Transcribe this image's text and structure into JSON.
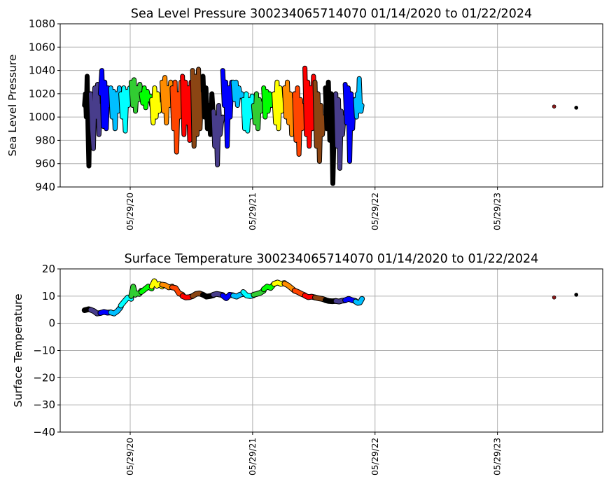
{
  "chart_data": [
    {
      "type": "scatter",
      "title": "Sea Level Pressure 300234065714070  01/14/2020 to 01/22/2024",
      "ylabel": "Sea Level Pressure",
      "xlabel": "",
      "ylim": [
        940,
        1080
      ],
      "yticks": [
        "940",
        "960",
        "980",
        "1000",
        "1020",
        "1040",
        "1060",
        "1080"
      ],
      "xticks": [
        {
          "date": "2020-05-29",
          "label": "05/29/20"
        },
        {
          "date": "2021-05-29",
          "label": "05/29/21"
        },
        {
          "date": "2022-05-29",
          "label": "05/29/22"
        },
        {
          "date": "2023-05-29",
          "label": "05/29/23"
        }
      ],
      "xlim": [
        "2019-11-06",
        "2024-03-12"
      ],
      "grid": true,
      "segments": [
        {
          "start": "2020-01-14",
          "end": "2020-02-01",
          "color": "#000000",
          "values": [
            1010,
            1020,
            1000,
            1035,
            990,
            958,
            1015,
            1005
          ]
        },
        {
          "start": "2020-02-01",
          "end": "2020-03-01",
          "color": "#483d8b",
          "values": [
            1020,
            990,
            973,
            1025,
            1000,
            1028,
            985,
            1010
          ]
        },
        {
          "start": "2020-03-01",
          "end": "2020-04-01",
          "color": "#0000ff",
          "values": [
            1020,
            1040,
            992,
            1030,
            990,
            1025,
            1010,
            1015
          ]
        },
        {
          "start": "2020-04-01",
          "end": "2020-05-01",
          "color": "#00bfff",
          "values": [
            1025,
            1000,
            1022,
            990,
            1020,
            1005,
            1025,
            1010
          ]
        },
        {
          "start": "2020-05-01",
          "end": "2020-06-01",
          "color": "#00ffff",
          "values": [
            1020,
            1000,
            1025,
            988,
            1022,
            1010,
            1025,
            1015
          ]
        },
        {
          "start": "2020-06-01",
          "end": "2020-07-01",
          "color": "#32cd32",
          "values": [
            1030,
            1010,
            1032,
            1005,
            1025,
            1015,
            1028,
            1020
          ]
        },
        {
          "start": "2020-07-01",
          "end": "2020-08-01",
          "color": "#00ff00",
          "values": [
            1020,
            1012,
            1025,
            1008,
            1022,
            1015,
            1018,
            1010
          ]
        },
        {
          "start": "2020-08-01",
          "end": "2020-09-01",
          "color": "#ffff00",
          "values": [
            1015,
            995,
            1025,
            1000,
            1020,
            1005,
            1010,
            1012
          ]
        },
        {
          "start": "2020-09-01",
          "end": "2020-10-01",
          "color": "#ff8c00",
          "values": [
            1030,
            1005,
            1034,
            995,
            1025,
            1010,
            1030,
            1015
          ]
        },
        {
          "start": "2020-10-01",
          "end": "2020-11-01",
          "color": "#ff4500",
          "values": [
            1025,
            990,
            1030,
            970,
            1020,
            1000,
            1030,
            1010
          ]
        },
        {
          "start": "2020-11-01",
          "end": "2020-12-01",
          "color": "#ff0000",
          "values": [
            1035,
            985,
            1030,
            995,
            1025,
            980,
            1030,
            1010
          ]
        },
        {
          "start": "2020-12-01",
          "end": "2021-01-01",
          "color": "#8b4513",
          "values": [
            1040,
            975,
            1035,
            985,
            1041,
            990,
            1020,
            1005
          ]
        },
        {
          "start": "2021-01-01",
          "end": "2021-02-01",
          "color": "#000000",
          "values": [
            1035,
            1000,
            1025,
            990,
            1010,
            985,
            1020,
            1000
          ]
        },
        {
          "start": "2021-02-01",
          "end": "2021-03-01",
          "color": "#483d8b",
          "values": [
            1005,
            975,
            1000,
            959,
            1010,
            985,
            995,
            1000
          ]
        },
        {
          "start": "2021-03-01",
          "end": "2021-04-01",
          "color": "#0000ff",
          "values": [
            1040,
            1010,
            1030,
            975,
            1025,
            1000,
            1030,
            1020
          ]
        },
        {
          "start": "2021-04-01",
          "end": "2021-05-01",
          "color": "#00bfff",
          "values": [
            1030,
            1015,
            1030,
            1010,
            1025,
            1018,
            1020,
            1015
          ]
        },
        {
          "start": "2021-05-01",
          "end": "2021-06-01",
          "color": "#00ffff",
          "values": [
            1015,
            990,
            1020,
            988,
            1015,
            1000,
            1018,
            1010
          ]
        },
        {
          "start": "2021-06-01",
          "end": "2021-07-01",
          "color": "#32cd32",
          "values": [
            1010,
            995,
            1020,
            990,
            1015,
            1005,
            1012,
            1010
          ]
        },
        {
          "start": "2021-07-01",
          "end": "2021-08-01",
          "color": "#00ff00",
          "values": [
            1025,
            1000,
            1022,
            1005,
            1020,
            1010,
            1015,
            1012
          ]
        },
        {
          "start": "2021-08-01",
          "end": "2021-09-01",
          "color": "#ffff00",
          "values": [
            1020,
            995,
            1030,
            990,
            1025,
            1005,
            1015,
            1012
          ]
        },
        {
          "start": "2021-09-01",
          "end": "2021-10-01",
          "color": "#ff8c00",
          "values": [
            1025,
            1000,
            1030,
            995,
            1020,
            985,
            1015,
            1005
          ]
        },
        {
          "start": "2021-10-01",
          "end": "2021-11-01",
          "color": "#ff4500",
          "values": [
            1020,
            980,
            1025,
            968,
            1015,
            990,
            1010,
            1000
          ]
        },
        {
          "start": "2021-11-01",
          "end": "2021-12-01",
          "color": "#ff0000",
          "values": [
            1042,
            985,
            1030,
            975,
            1025,
            990,
            1035,
            1000
          ]
        },
        {
          "start": "2021-12-01",
          "end": "2022-01-01",
          "color": "#8b4513",
          "values": [
            1030,
            975,
            1020,
            962,
            1010,
            985,
            1000,
            995
          ]
        },
        {
          "start": "2022-01-01",
          "end": "2022-02-01",
          "color": "#000000",
          "values": [
            1025,
            990,
            1030,
            980,
            1020,
            943,
            1000,
            1010
          ]
        },
        {
          "start": "2022-02-01",
          "end": "2022-03-01",
          "color": "#483d8b",
          "values": [
            1020,
            975,
            1015,
            956,
            1005,
            985,
            1000,
            995
          ]
        },
        {
          "start": "2022-03-01",
          "end": "2022-04-01",
          "color": "#0000ff",
          "values": [
            1028,
            995,
            1025,
            962,
            1020,
            990,
            1015,
            1010
          ]
        },
        {
          "start": "2022-04-01",
          "end": "2022-04-20",
          "color": "#00bfff",
          "values": [
            1015,
            1000,
            1020,
            1005,
            1033,
            1012,
            1005,
            1010
          ]
        }
      ],
      "points": [
        {
          "date": "2023-11-14",
          "value": 1009,
          "color": "#8b1a1a"
        },
        {
          "date": "2024-01-19",
          "value": 1008,
          "color": "#000000"
        }
      ]
    },
    {
      "type": "scatter",
      "title": "Surface Temperature 300234065714070  01/14/2020 to 01/22/2024",
      "ylabel": "Surface Temperature",
      "xlabel": "",
      "ylim": [
        -40,
        20
      ],
      "yticks": [
        "−40",
        "−30",
        "−20",
        "−10",
        "0",
        "10",
        "20"
      ],
      "xticks": [
        {
          "date": "2020-05-29",
          "label": "05/29/20"
        },
        {
          "date": "2021-05-29",
          "label": "05/29/21"
        },
        {
          "date": "2022-05-29",
          "label": "05/29/22"
        },
        {
          "date": "2023-05-29",
          "label": "05/29/23"
        }
      ],
      "xlim": [
        "2019-11-06",
        "2024-03-12"
      ],
      "grid": true,
      "segments": [
        {
          "start": "2020-01-14",
          "end": "2020-02-01",
          "color": "#000000",
          "values": [
            4.8,
            5.0,
            5.2,
            5.0
          ]
        },
        {
          "start": "2020-02-01",
          "end": "2020-03-01",
          "color": "#483d8b",
          "values": [
            5.0,
            4.5,
            3.6,
            3.8
          ]
        },
        {
          "start": "2020-03-01",
          "end": "2020-04-01",
          "color": "#0000ff",
          "values": [
            3.8,
            4.2,
            3.9,
            4.0
          ]
        },
        {
          "start": "2020-04-01",
          "end": "2020-05-01",
          "color": "#00bfff",
          "values": [
            4.0,
            3.6,
            4.5,
            6.0
          ]
        },
        {
          "start": "2020-05-01",
          "end": "2020-06-01",
          "color": "#00ffff",
          "values": [
            6.5,
            8.0,
            9.5,
            9.0
          ]
        },
        {
          "start": "2020-06-01",
          "end": "2020-07-01",
          "color": "#32cd32",
          "values": [
            10.0,
            13.5,
            10.5,
            11.0,
            10.8,
            12.0
          ]
        },
        {
          "start": "2020-07-01",
          "end": "2020-08-01",
          "color": "#00ff00",
          "values": [
            11.5,
            12.5,
            13.5,
            12.8
          ]
        },
        {
          "start": "2020-08-01",
          "end": "2020-09-01",
          "color": "#ffff00",
          "values": [
            13.5,
            15.5,
            13.8,
            14.5,
            13.5
          ]
        },
        {
          "start": "2020-09-01",
          "end": "2020-10-01",
          "color": "#ff8c00",
          "values": [
            14.2,
            14.0,
            13.2,
            13.5
          ]
        },
        {
          "start": "2020-10-01",
          "end": "2020-11-01",
          "color": "#ff4500",
          "values": [
            13.2,
            13.0,
            11.0,
            10.5
          ]
        },
        {
          "start": "2020-11-01",
          "end": "2020-12-01",
          "color": "#ff0000",
          "values": [
            10.0,
            9.5,
            9.6,
            10.0
          ]
        },
        {
          "start": "2020-12-01",
          "end": "2021-01-01",
          "color": "#8b4513",
          "values": [
            10.0,
            10.8,
            11.0,
            10.5
          ]
        },
        {
          "start": "2021-01-01",
          "end": "2021-02-01",
          "color": "#000000",
          "values": [
            10.5,
            9.8,
            10.0,
            10.3
          ]
        },
        {
          "start": "2021-02-01",
          "end": "2021-03-01",
          "color": "#483d8b",
          "values": [
            10.5,
            10.8,
            10.6,
            10.4
          ]
        },
        {
          "start": "2021-03-01",
          "end": "2021-04-01",
          "color": "#0000ff",
          "values": [
            10.2,
            9.2,
            10.5,
            10.3
          ]
        },
        {
          "start": "2021-04-01",
          "end": "2021-05-01",
          "color": "#00bfff",
          "values": [
            10.2,
            9.8,
            10.5,
            10.8
          ]
        },
        {
          "start": "2021-05-01",
          "end": "2021-06-01",
          "color": "#00ffff",
          "values": [
            11.5,
            10.2,
            10.0,
            10.3
          ]
        },
        {
          "start": "2021-06-01",
          "end": "2021-07-01",
          "color": "#32cd32",
          "values": [
            10.5,
            10.8,
            11.2,
            12.0
          ]
        },
        {
          "start": "2021-07-01",
          "end": "2021-08-01",
          "color": "#00ff00",
          "values": [
            12.5,
            13.5,
            13.0,
            14.5
          ]
        },
        {
          "start": "2021-08-01",
          "end": "2021-09-01",
          "color": "#ffff00",
          "values": [
            14.5,
            15.0,
            14.5,
            14.8
          ]
        },
        {
          "start": "2021-09-01",
          "end": "2021-10-01",
          "color": "#ff8c00",
          "values": [
            14.6,
            14.0,
            13.0,
            12.0
          ]
        },
        {
          "start": "2021-10-01",
          "end": "2021-11-01",
          "color": "#ff4500",
          "values": [
            12.0,
            11.5,
            10.8,
            10.3
          ]
        },
        {
          "start": "2021-11-01",
          "end": "2021-12-01",
          "color": "#ff0000",
          "values": [
            10.2,
            9.6,
            9.8,
            9.5
          ]
        },
        {
          "start": "2021-12-01",
          "end": "2022-01-01",
          "color": "#8b4513",
          "values": [
            9.5,
            9.2,
            9.0,
            8.6
          ]
        },
        {
          "start": "2022-01-01",
          "end": "2022-02-01",
          "color": "#000000",
          "values": [
            8.5,
            8.2,
            8.1,
            8.2
          ]
        },
        {
          "start": "2022-02-01",
          "end": "2022-03-01",
          "color": "#483d8b",
          "values": [
            8.2,
            8.0,
            8.3,
            8.4
          ]
        },
        {
          "start": "2022-03-01",
          "end": "2022-04-01",
          "color": "#0000ff",
          "values": [
            8.5,
            9.0,
            8.5,
            8.2
          ]
        },
        {
          "start": "2022-04-01",
          "end": "2022-04-20",
          "color": "#00bfff",
          "values": [
            8.0,
            7.5,
            7.6,
            9.0
          ]
        }
      ],
      "points": [
        {
          "date": "2023-11-14",
          "value": 9.5,
          "color": "#8b1a1a"
        },
        {
          "date": "2024-01-19",
          "value": 10.5,
          "color": "#000000"
        }
      ]
    }
  ]
}
